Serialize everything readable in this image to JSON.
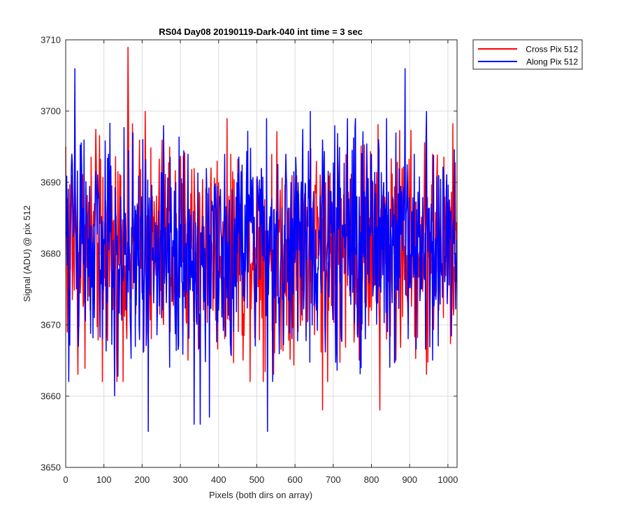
{
  "chart_data": {
    "type": "line",
    "title": "RS04 Day08 20190119-Dark-040 int time = 3 sec",
    "xlabel": "Pixels (both dirs on array)",
    "ylabel": "Signal (ADU) @ pix 512",
    "xlim": [
      0,
      1024
    ],
    "ylim": [
      3650,
      3710
    ],
    "xticks": [
      0,
      100,
      200,
      300,
      400,
      500,
      600,
      700,
      800,
      900,
      1000
    ],
    "yticks": [
      3650,
      3660,
      3670,
      3680,
      3690,
      3700,
      3710
    ],
    "grid": true,
    "legend_position": "outside-top-right",
    "series": [
      {
        "name": "Cross Pix 512",
        "color": "#ff0000",
        "description": "approximately 1024 noisy samples around 3681 ADU, range about 3658-3709",
        "x": [
          0,
          8,
          16,
          24,
          32,
          48,
          64,
          80,
          96,
          112,
          128,
          144,
          160,
          163,
          176,
          192,
          208,
          224,
          240,
          256,
          272,
          288,
          304,
          320,
          336,
          352,
          368,
          384,
          400,
          416,
          432,
          448,
          464,
          480,
          496,
          512,
          528,
          544,
          560,
          576,
          592,
          608,
          624,
          640,
          656,
          672,
          680,
          688,
          704,
          720,
          736,
          752,
          768,
          784,
          800,
          816,
          822,
          832,
          848,
          864,
          880,
          896,
          912,
          928,
          944,
          960,
          976,
          992,
          1008,
          1023
        ],
        "values": [
          3695,
          3664,
          3691,
          3702,
          3663,
          3685,
          3672,
          3693,
          3662,
          3688,
          3676,
          3691,
          3668,
          3709,
          3675,
          3690,
          3700,
          3668,
          3684,
          3670,
          3695,
          3676,
          3688,
          3665,
          3692,
          3672,
          3686,
          3678,
          3690,
          3668,
          3694,
          3676,
          3665,
          3688,
          3670,
          3692,
          3680,
          3663,
          3686,
          3674,
          3691,
          3669,
          3687,
          3676,
          3693,
          3658,
          3690,
          3672,
          3686,
          3670,
          3694,
          3676,
          3665,
          3688,
          3672,
          3679,
          3658,
          3690,
          3674,
          3665,
          3692,
          3670,
          3686,
          3676,
          3663,
          3694,
          3672,
          3688,
          3680,
          3676
        ]
      },
      {
        "name": "Along Pix 512",
        "color": "#0000ff",
        "description": "approximately 1024 noisy samples around 3681 ADU, range about 3655-3706",
        "x": [
          0,
          8,
          16,
          24,
          32,
          48,
          64,
          80,
          96,
          112,
          128,
          144,
          160,
          176,
          192,
          208,
          216,
          224,
          240,
          256,
          272,
          288,
          304,
          320,
          336,
          352,
          368,
          376,
          384,
          400,
          416,
          432,
          448,
          464,
          480,
          496,
          512,
          528,
          544,
          560,
          576,
          592,
          608,
          624,
          640,
          656,
          672,
          688,
          704,
          720,
          736,
          752,
          768,
          784,
          800,
          816,
          832,
          848,
          864,
          880,
          888,
          896,
          912,
          928,
          944,
          960,
          976,
          992,
          1008,
          1023
        ],
        "values": [
          3683,
          3662,
          3694,
          3706,
          3672,
          3696,
          3676,
          3689,
          3668,
          3694,
          3660,
          3688,
          3674,
          3697,
          3670,
          3690,
          3655,
          3686,
          3672,
          3698,
          3664,
          3690,
          3676,
          3694,
          3656,
          3656,
          3692,
          3657,
          3686,
          3672,
          3694,
          3666,
          3690,
          3674,
          3688,
          3667,
          3692,
          3655,
          3686,
          3672,
          3694,
          3668,
          3690,
          3675,
          3700,
          3672,
          3696,
          3674,
          3698,
          3670,
          3692,
          3676,
          3688,
          3668,
          3694,
          3673,
          3690,
          3664,
          3697,
          3682,
          3706,
          3668,
          3694,
          3675,
          3700,
          3665,
          3691,
          3676,
          3686,
          3682
        ]
      }
    ]
  }
}
